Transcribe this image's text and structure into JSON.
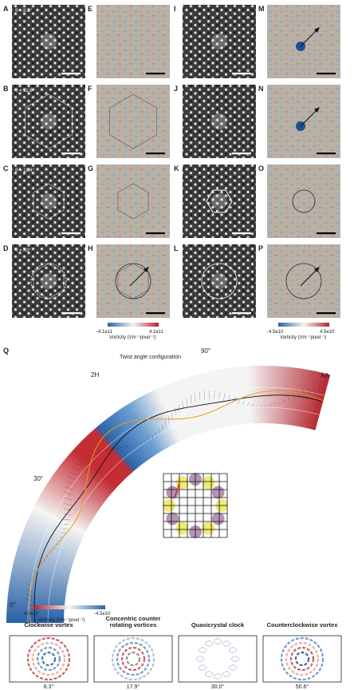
{
  "panels": [
    {
      "label": "A",
      "angle": "θ = 8.3°"
    },
    {
      "label": "B",
      "angle": "θ = 11.6°"
    },
    {
      "label": "C",
      "angle": "θ = 18.4°"
    },
    {
      "label": "D",
      "angle": "θ = 30°"
    },
    {
      "label": "E"
    },
    {
      "label": "F"
    },
    {
      "label": "G"
    },
    {
      "label": "H"
    },
    {
      "label": "I"
    },
    {
      "label": "J"
    },
    {
      "label": "K"
    },
    {
      "label": "L"
    },
    {
      "label": "M"
    },
    {
      "label": "N"
    },
    {
      "label": "O"
    },
    {
      "label": "P"
    }
  ],
  "colorbars": [
    {
      "min": "-4.1e11",
      "max": "4.1e11",
      "label": "Vorticity (Vm⁻¹pixel⁻¹)"
    },
    {
      "min": "-4.5e10",
      "max": "4.5e10",
      "label": "Vorticity (Vm⁻¹pixel⁻¹)"
    }
  ],
  "q": {
    "label": "Q",
    "title": "Twist angle configuration",
    "tick_90": "90°",
    "tick_30": "30°",
    "tick_0": "0°",
    "marker_2h": "2H",
    "marker_aa": "AA",
    "colorbar": {
      "left": "4.5e10",
      "right": "-4.5e10",
      "label": "Vorticity (Vm⁻¹pixel⁻¹)"
    }
  },
  "insets": [
    {
      "title": "Clockwise vortex",
      "angle": "8.3°"
    },
    {
      "title": "Concentric counter rotating vortices",
      "angle": "17.9°"
    },
    {
      "title": "Quasicrystal clock",
      "angle": "30.0°"
    },
    {
      "title": "Counterclockwise vortex",
      "angle": "50.6°"
    }
  ]
}
